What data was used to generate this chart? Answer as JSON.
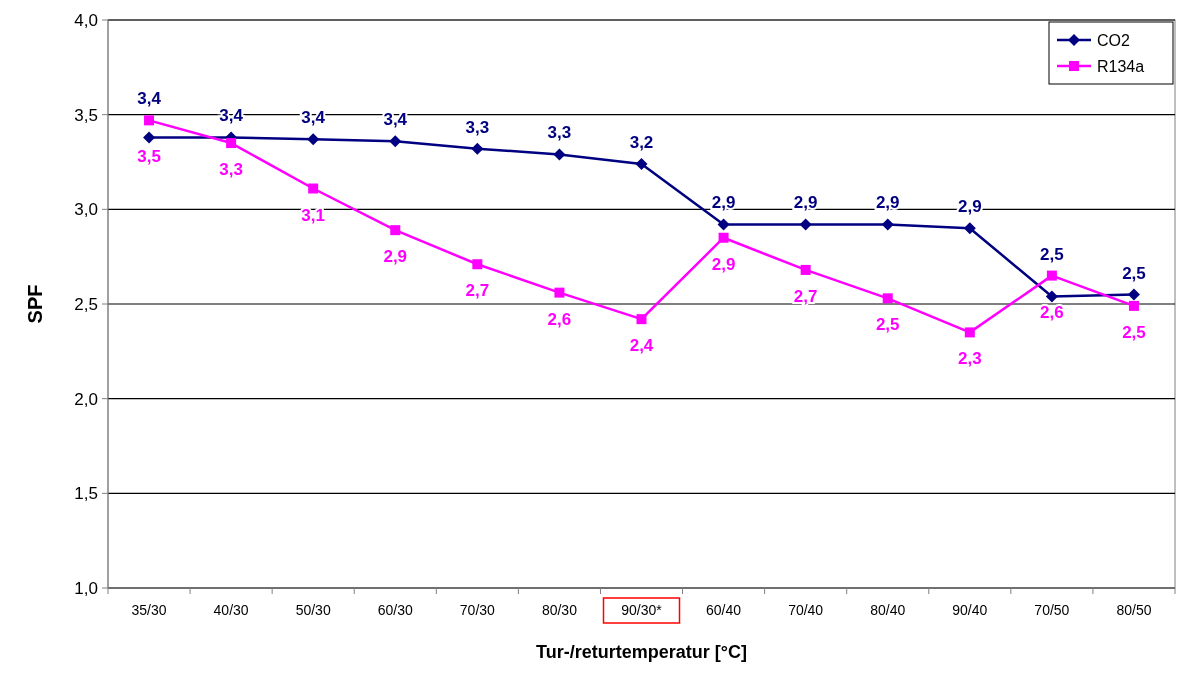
{
  "chart_data": {
    "type": "line",
    "xlabel": "Tur-/returtemperatur [°C]",
    "ylabel": "SPF",
    "categories": [
      "35/30",
      "40/30",
      "50/30",
      "60/30",
      "70/30",
      "80/30",
      "90/30*",
      "60/40",
      "70/40",
      "80/40",
      "90/40",
      "70/50",
      "80/50"
    ],
    "series": [
      {
        "name": "CO2",
        "color": "#000080",
        "marker": "diamond",
        "values": [
          3.38,
          3.38,
          3.37,
          3.36,
          3.32,
          3.29,
          3.24,
          2.92,
          2.92,
          2.92,
          2.9,
          2.54,
          2.55
        ],
        "value_labels": [
          "3,4",
          "3,4",
          "3,4",
          "3,4",
          "3,3",
          "3,3",
          "3,2",
          "2,9",
          "2,9",
          "2,9",
          "2,9",
          "2,5",
          "2,5"
        ]
      },
      {
        "name": "R134a",
        "color": "#ff00ff",
        "marker": "square",
        "values": [
          3.47,
          3.35,
          3.11,
          2.89,
          2.71,
          2.56,
          2.42,
          2.85,
          2.68,
          2.53,
          2.35,
          2.65,
          2.49
        ],
        "value_labels": [
          "3,5",
          "3,3",
          "3,1",
          "2,9",
          "2,7",
          "2,6",
          "2,4",
          "2,9",
          "2,7",
          "2,5",
          "2,3",
          "2,6",
          "2,5"
        ]
      }
    ],
    "ylim": [
      1,
      4
    ],
    "yticks": [
      {
        "value": 1,
        "label": "1,0"
      },
      {
        "value": 1.5,
        "label": "1,5"
      },
      {
        "value": 2,
        "label": "2,0"
      },
      {
        "value": 2.5,
        "label": "2,5"
      },
      {
        "value": 3,
        "label": "3,0"
      },
      {
        "value": 3.5,
        "label": "3,5"
      },
      {
        "value": 4,
        "label": "4,0"
      }
    ],
    "grid": "y",
    "legend": "top right",
    "line_style": "solid"
  }
}
